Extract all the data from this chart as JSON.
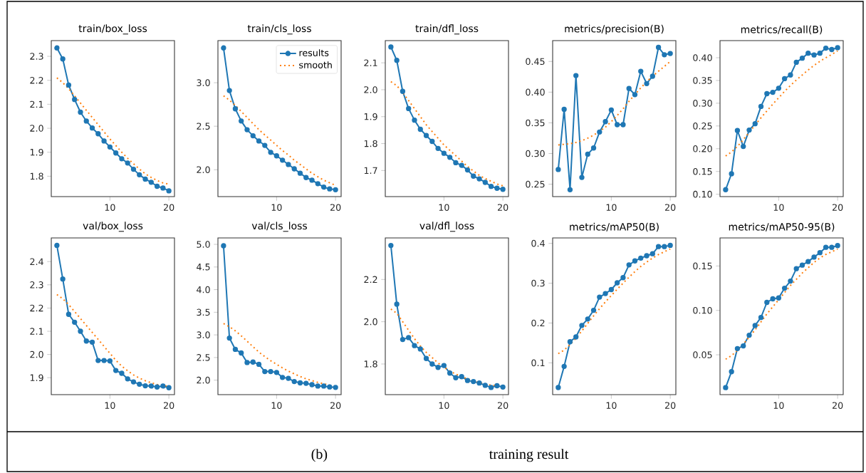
{
  "chart_data": [
    {
      "type": "line",
      "title": "train/box_loss",
      "x": [
        1,
        2,
        3,
        4,
        5,
        6,
        7,
        8,
        9,
        10,
        11,
        12,
        13,
        14,
        15,
        16,
        17,
        18,
        19,
        20
      ],
      "xlim": [
        0.05,
        20.95
      ],
      "xticks": [
        10,
        20
      ],
      "ylim": [
        1.715,
        2.3655
      ],
      "yticks": [
        1.8,
        1.9,
        {
          "value": 2.0,
          "label": "2.0"
        },
        2.1,
        2.2,
        2.3
      ],
      "marker": "circle",
      "line_style": "solid",
      "annotations": [
        "(b)",
        "training result"
      ],
      "series": [
        {
          "color": "#1f77b4",
          "values": [
            2.335,
            2.289,
            2.18,
            2.12,
            2.067,
            2.03,
            2.001,
            1.977,
            1.947,
            1.922,
            1.897,
            1.873,
            1.855,
            1.829,
            1.806,
            1.788,
            1.775,
            1.758,
            1.751,
            1.739
          ]
        },
        {
          "color": "#ff7f0e",
          "marker": "none",
          "line_style": "dotted",
          "values": [
            2.21,
            2.19,
            2.165,
            2.135,
            2.105,
            2.075,
            2.045,
            2.015,
            1.985,
            1.955,
            1.928,
            1.9,
            1.875,
            1.852,
            1.83,
            1.81,
            1.795,
            1.782,
            1.772,
            1.767
          ]
        }
      ]
    },
    {
      "type": "line",
      "title": "train/cls_loss",
      "x": [
        1,
        2,
        3,
        4,
        5,
        6,
        7,
        8,
        9,
        10,
        11,
        12,
        13,
        14,
        15,
        16,
        17,
        18,
        19,
        20
      ],
      "xlim": [
        0.05,
        20.95
      ],
      "xticks": [
        10,
        20
      ],
      "ylim": [
        1.691,
        3.484
      ],
      "yticks": [
        {
          "value": 2.0,
          "label": "2.0"
        },
        2.5,
        {
          "value": 3.0,
          "label": "3.0"
        }
      ],
      "marker": "circle",
      "line_style": "solid",
      "legend": "top right",
      "series": [
        {
          "name": "results",
          "color": "#1f77b4",
          "values": [
            3.4,
            2.91,
            2.7,
            2.56,
            2.46,
            2.39,
            2.33,
            2.28,
            2.2,
            2.16,
            2.11,
            2.06,
            2.01,
            1.96,
            1.91,
            1.88,
            1.84,
            1.8,
            1.78,
            1.77
          ]
        },
        {
          "name": "smooth",
          "color": "#ff7f0e",
          "marker": "none",
          "line_style": "dotted",
          "values": [
            2.85,
            2.8,
            2.74,
            2.67,
            2.6,
            2.53,
            2.46,
            2.4,
            2.34,
            2.28,
            2.22,
            2.17,
            2.11,
            2.06,
            2.01,
            1.96,
            1.92,
            1.88,
            1.85,
            1.82
          ]
        }
      ]
    },
    {
      "type": "line",
      "title": "train/dfl_loss",
      "x": [
        1,
        2,
        3,
        4,
        5,
        6,
        7,
        8,
        9,
        10,
        11,
        12,
        13,
        14,
        15,
        16,
        17,
        18,
        19,
        20
      ],
      "xlim": [
        0.05,
        20.95
      ],
      "xticks": [
        10,
        20
      ],
      "ylim": [
        1.603,
        2.1825
      ],
      "yticks": [
        1.7,
        1.8,
        1.9,
        {
          "value": 2.0,
          "label": "2.0"
        },
        2.1
      ],
      "marker": "circle",
      "line_style": "solid",
      "series": [
        {
          "color": "#1f77b4",
          "values": [
            2.159,
            2.109,
            1.994,
            1.93,
            1.887,
            1.853,
            1.83,
            1.808,
            1.782,
            1.764,
            1.749,
            1.729,
            1.719,
            1.702,
            1.679,
            1.669,
            1.656,
            1.641,
            1.634,
            1.63
          ]
        },
        {
          "color": "#ff7f0e",
          "marker": "none",
          "line_style": "dotted",
          "values": [
            2.03,
            2.015,
            1.99,
            1.96,
            1.93,
            1.9,
            1.87,
            1.845,
            1.82,
            1.795,
            1.775,
            1.755,
            1.735,
            1.715,
            1.698,
            1.682,
            1.67,
            1.66,
            1.65,
            1.643
          ]
        }
      ]
    },
    {
      "type": "line",
      "title": "metrics/precision(B)",
      "x": [
        1,
        2,
        3,
        4,
        5,
        6,
        7,
        8,
        9,
        10,
        11,
        12,
        13,
        14,
        15,
        16,
        17,
        18,
        19,
        20
      ],
      "xlim": [
        0.05,
        20.95
      ],
      "xticks": [
        10,
        20
      ],
      "ylim": [
        0.2298,
        0.484
      ],
      "yticks": [
        0.25,
        {
          "value": 0.3,
          "label": "0.30"
        },
        0.35,
        {
          "value": 0.4,
          "label": "0.40"
        },
        0.45
      ],
      "marker": "circle",
      "line_style": "solid",
      "series": [
        {
          "color": "#1f77b4",
          "values": [
            0.274,
            0.372,
            0.241,
            0.427,
            0.261,
            0.299,
            0.309,
            0.335,
            0.352,
            0.371,
            0.347,
            0.347,
            0.406,
            0.396,
            0.434,
            0.414,
            0.426,
            0.473,
            0.461,
            0.463
          ]
        },
        {
          "color": "#ff7f0e",
          "marker": "none",
          "line_style": "dotted",
          "values": [
            0.314,
            0.315,
            0.316,
            0.318,
            0.321,
            0.325,
            0.33,
            0.336,
            0.343,
            0.352,
            0.362,
            0.373,
            0.385,
            0.396,
            0.407,
            0.417,
            0.426,
            0.434,
            0.442,
            0.45
          ]
        }
      ]
    },
    {
      "type": "line",
      "title": "metrics/recall(B)",
      "x": [
        1,
        2,
        3,
        4,
        5,
        6,
        7,
        8,
        9,
        10,
        11,
        12,
        13,
        14,
        15,
        16,
        17,
        18,
        19,
        20
      ],
      "xlim": [
        0.05,
        20.95
      ],
      "xticks": [
        10,
        20
      ],
      "ylim": [
        0.0948,
        0.4376
      ],
      "yticks": [
        {
          "value": 0.1,
          "label": "0.10"
        },
        0.15,
        {
          "value": 0.2,
          "label": "0.20"
        },
        0.25,
        {
          "value": 0.3,
          "label": "0.30"
        },
        0.35,
        {
          "value": 0.4,
          "label": "0.40"
        }
      ],
      "marker": "circle",
      "line_style": "solid",
      "series": [
        {
          "color": "#1f77b4",
          "values": [
            0.11,
            0.145,
            0.24,
            0.205,
            0.241,
            0.255,
            0.293,
            0.321,
            0.324,
            0.333,
            0.354,
            0.362,
            0.39,
            0.399,
            0.41,
            0.406,
            0.41,
            0.421,
            0.418,
            0.422
          ]
        },
        {
          "color": "#ff7f0e",
          "marker": "none",
          "line_style": "dotted",
          "values": [
            0.184,
            0.193,
            0.205,
            0.22,
            0.236,
            0.252,
            0.268,
            0.283,
            0.298,
            0.312,
            0.326,
            0.339,
            0.351,
            0.362,
            0.373,
            0.383,
            0.392,
            0.4,
            0.407,
            0.415
          ]
        }
      ]
    },
    {
      "type": "line",
      "title": "val/box_loss",
      "x": [
        1,
        2,
        3,
        4,
        5,
        6,
        7,
        8,
        9,
        10,
        11,
        12,
        13,
        14,
        15,
        16,
        17,
        18,
        19,
        20
      ],
      "xlim": [
        0.05,
        20.95
      ],
      "xticks": [
        10,
        20
      ],
      "ylim": [
        1.827,
        2.502
      ],
      "yticks": [
        1.9,
        {
          "value": 2.0,
          "label": "2.0"
        },
        2.1,
        2.2,
        2.3,
        2.4
      ],
      "marker": "circle",
      "line_style": "solid",
      "series": [
        {
          "color": "#1f77b4",
          "values": [
            2.47,
            2.325,
            2.173,
            2.139,
            2.1,
            2.058,
            2.053,
            1.974,
            1.974,
            1.972,
            1.931,
            1.919,
            1.895,
            1.882,
            1.872,
            1.865,
            1.864,
            1.86,
            1.864,
            1.857
          ]
        },
        {
          "color": "#ff7f0e",
          "marker": "none",
          "line_style": "dotted",
          "values": [
            2.258,
            2.24,
            2.215,
            2.185,
            2.155,
            2.125,
            2.095,
            2.065,
            2.035,
            2.005,
            1.975,
            1.95,
            1.93,
            1.912,
            1.898,
            1.887,
            1.878,
            1.871,
            1.866,
            1.862
          ]
        }
      ]
    },
    {
      "type": "line",
      "title": "val/cls_loss",
      "x": [
        1,
        2,
        3,
        4,
        5,
        6,
        7,
        8,
        9,
        10,
        11,
        12,
        13,
        14,
        15,
        16,
        17,
        18,
        19,
        20
      ],
      "xlim": [
        0.05,
        20.95
      ],
      "xticks": [
        10,
        20
      ],
      "ylim": [
        1.68,
        5.142
      ],
      "yticks": [
        {
          "value": 2.0,
          "label": "2.0"
        },
        2.5,
        {
          "value": 3.0,
          "label": "3.0"
        },
        3.5,
        {
          "value": 4.0,
          "label": "4.0"
        },
        4.5,
        {
          "value": 5.0,
          "label": "5.0"
        }
      ],
      "marker": "circle",
      "line_style": "solid",
      "series": [
        {
          "color": "#1f77b4",
          "values": [
            4.97,
            2.93,
            2.68,
            2.6,
            2.39,
            2.4,
            2.35,
            2.19,
            2.19,
            2.17,
            2.06,
            2.04,
            1.97,
            1.94,
            1.93,
            1.9,
            1.87,
            1.87,
            1.85,
            1.84
          ]
        },
        {
          "color": "#ff7f0e",
          "marker": "none",
          "line_style": "dotted",
          "values": [
            3.25,
            3.18,
            3.09,
            2.98,
            2.86,
            2.74,
            2.62,
            2.52,
            2.43,
            2.35,
            2.27,
            2.2,
            2.14,
            2.08,
            2.03,
            1.99,
            1.95,
            1.92,
            1.89,
            null
          ]
        }
      ]
    },
    {
      "type": "line",
      "title": "val/dfl_loss",
      "x": [
        1,
        2,
        3,
        4,
        5,
        6,
        7,
        8,
        9,
        10,
        11,
        12,
        13,
        14,
        15,
        16,
        17,
        18,
        19,
        20
      ],
      "xlim": [
        0.05,
        20.95
      ],
      "xticks": [
        10,
        20
      ],
      "ylim": [
        1.655,
        2.3966
      ],
      "yticks": [
        1.8,
        {
          "value": 2.0,
          "label": "2.0"
        },
        2.2
      ],
      "marker": "circle",
      "line_style": "solid",
      "series": [
        {
          "color": "#1f77b4",
          "values": [
            2.361,
            2.083,
            1.916,
            1.925,
            1.887,
            1.871,
            1.826,
            1.8,
            1.784,
            1.793,
            1.757,
            1.735,
            1.74,
            1.722,
            1.717,
            1.71,
            1.699,
            1.689,
            1.697,
            1.691
          ]
        },
        {
          "color": "#ff7f0e",
          "marker": "none",
          "line_style": "dotted",
          "values": [
            2.06,
            2.04,
            2.0,
            1.96,
            1.92,
            1.885,
            1.855,
            1.83,
            1.805,
            1.785,
            1.767,
            1.752,
            1.74,
            1.73,
            1.72,
            1.712,
            1.705,
            1.7,
            1.697,
            null
          ]
        }
      ]
    },
    {
      "type": "line",
      "title": "metrics/mAP50(B)",
      "x": [
        1,
        2,
        3,
        4,
        5,
        6,
        7,
        8,
        9,
        10,
        11,
        12,
        13,
        14,
        15,
        16,
        17,
        18,
        19,
        20
      ],
      "xlim": [
        0.05,
        20.95
      ],
      "xticks": [
        10,
        20
      ],
      "ylim": [
        0.0201,
        0.4137
      ],
      "yticks": [
        0.1,
        0.2,
        0.3,
        0.4
      ],
      "marker": "circle",
      "line_style": "solid",
      "series": [
        {
          "color": "#1f77b4",
          "values": [
            0.038,
            0.091,
            0.153,
            0.165,
            0.194,
            0.21,
            0.232,
            0.265,
            0.274,
            0.284,
            0.301,
            0.314,
            0.346,
            0.356,
            0.363,
            0.369,
            0.374,
            0.392,
            0.392,
            0.395
          ]
        },
        {
          "color": "#ff7f0e",
          "marker": "none",
          "line_style": "dotted",
          "values": [
            0.123,
            0.132,
            0.146,
            0.162,
            0.18,
            0.199,
            0.218,
            0.236,
            0.253,
            0.269,
            0.285,
            0.3,
            0.315,
            0.329,
            0.342,
            0.353,
            0.363,
            0.372,
            0.379,
            0.386
          ]
        }
      ]
    },
    {
      "type": "line",
      "title": "metrics/mAP50-95(B)",
      "x": [
        1,
        2,
        3,
        4,
        5,
        6,
        7,
        8,
        9,
        10,
        11,
        12,
        13,
        14,
        15,
        16,
        17,
        18,
        19,
        20
      ],
      "xlim": [
        0.05,
        20.95
      ],
      "xticks": [
        10,
        20
      ],
      "ylim": [
        0.0051,
        0.1816
      ],
      "yticks": [
        0.05,
        {
          "value": 0.1,
          "label": "0.10"
        },
        0.15
      ],
      "marker": "circle",
      "line_style": "solid",
      "series": [
        {
          "color": "#1f77b4",
          "values": [
            0.013,
            0.031,
            0.057,
            0.06,
            0.072,
            0.083,
            0.092,
            0.109,
            0.113,
            0.114,
            0.125,
            0.133,
            0.147,
            0.151,
            0.155,
            0.16,
            0.165,
            0.171,
            0.171,
            0.173
          ]
        },
        {
          "color": "#ff7f0e",
          "marker": "none",
          "line_style": "dotted",
          "values": [
            0.045,
            0.049,
            0.055,
            0.062,
            0.07,
            0.078,
            0.087,
            0.096,
            0.104,
            0.112,
            0.12,
            0.128,
            0.135,
            0.142,
            0.148,
            0.154,
            0.159,
            0.163,
            0.166,
            0.169
          ]
        }
      ]
    }
  ]
}
